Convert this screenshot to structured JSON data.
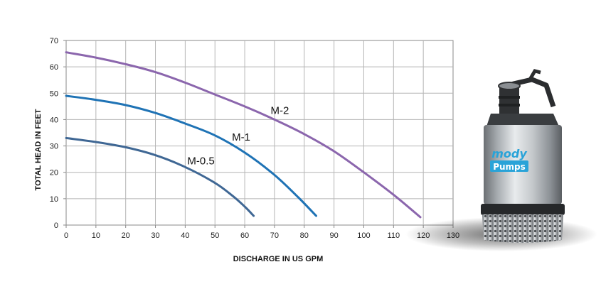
{
  "chart_data": {
    "type": "line",
    "xlabel": "DISCHARGE IN US GPM",
    "ylabel": "TOTAL HEAD IN FEET",
    "xlim": [
      0,
      130
    ],
    "ylim": [
      0,
      70
    ],
    "x_ticks": [
      0,
      10,
      20,
      30,
      40,
      50,
      60,
      70,
      80,
      90,
      100,
      110,
      120,
      130
    ],
    "y_ticks": [
      0,
      10,
      20,
      30,
      40,
      50,
      60,
      70
    ],
    "grid": true,
    "series": [
      {
        "name": "M-0.5",
        "color": "#3f6794",
        "points": [
          [
            0,
            33
          ],
          [
            10,
            31.5
          ],
          [
            20,
            29.5
          ],
          [
            30,
            26.5
          ],
          [
            40,
            22
          ],
          [
            50,
            16
          ],
          [
            56,
            11
          ],
          [
            60,
            7
          ],
          [
            63,
            3.5
          ]
        ]
      },
      {
        "name": "M-1",
        "color": "#1f73b5",
        "points": [
          [
            0,
            49
          ],
          [
            10,
            47.5
          ],
          [
            20,
            45.5
          ],
          [
            30,
            42.5
          ],
          [
            40,
            38.5
          ],
          [
            50,
            34
          ],
          [
            60,
            27.5
          ],
          [
            70,
            19
          ],
          [
            78,
            10.5
          ],
          [
            84,
            3.5
          ]
        ]
      },
      {
        "name": "M-2",
        "color": "#8b66ad",
        "points": [
          [
            0,
            65.5
          ],
          [
            10,
            63.5
          ],
          [
            20,
            61
          ],
          [
            30,
            58
          ],
          [
            40,
            54
          ],
          [
            50,
            49.5
          ],
          [
            60,
            45
          ],
          [
            70,
            40
          ],
          [
            80,
            34.5
          ],
          [
            90,
            28
          ],
          [
            100,
            20
          ],
          [
            110,
            11.5
          ],
          [
            119,
            3
          ]
        ]
      }
    ]
  },
  "product": {
    "brand_top": "mody",
    "brand_bottom": "Pumps"
  }
}
